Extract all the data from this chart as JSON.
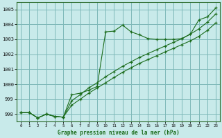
{
  "title": "Graphe pression niveau de la mer (hPa)",
  "background_color": "#c8eaea",
  "grid_color": "#7db8b8",
  "line_color": "#1a6b1a",
  "x_labels": [
    "0",
    "1",
    "2",
    "3",
    "4",
    "5",
    "6",
    "7",
    "8",
    "9",
    "10",
    "11",
    "12",
    "13",
    "14",
    "15",
    "16",
    "17",
    "18",
    "19",
    "20",
    "21",
    "22",
    "23"
  ],
  "ylim": [
    997.5,
    1005.5
  ],
  "yticks": [
    998,
    999,
    1000,
    1001,
    1002,
    1003,
    1004,
    1005
  ],
  "serA": [
    998.1,
    998.1,
    997.75,
    998.0,
    997.85,
    997.8,
    999.3,
    999.4,
    999.6,
    999.85,
    1003.5,
    1003.55,
    1003.95,
    1003.5,
    1003.3,
    1003.05,
    1003.0,
    1003.0,
    1003.0,
    1003.05,
    1003.35,
    1004.3,
    1004.5,
    1005.1
  ],
  "serB": [
    998.1,
    998.1,
    997.75,
    998.0,
    997.85,
    997.8,
    998.6,
    999.0,
    999.4,
    999.75,
    1000.1,
    1000.45,
    1000.8,
    1001.1,
    1001.4,
    1001.65,
    1001.9,
    1002.15,
    1002.4,
    1002.65,
    1002.9,
    1003.2,
    1003.6,
    1004.1
  ],
  "serC": [
    998.1,
    998.1,
    997.75,
    998.0,
    997.85,
    997.8,
    998.9,
    999.3,
    999.75,
    1000.1,
    1000.5,
    1000.85,
    1001.2,
    1001.5,
    1001.8,
    1002.05,
    1002.3,
    1002.55,
    1002.8,
    1003.05,
    1003.35,
    1003.7,
    1004.15,
    1004.7
  ]
}
